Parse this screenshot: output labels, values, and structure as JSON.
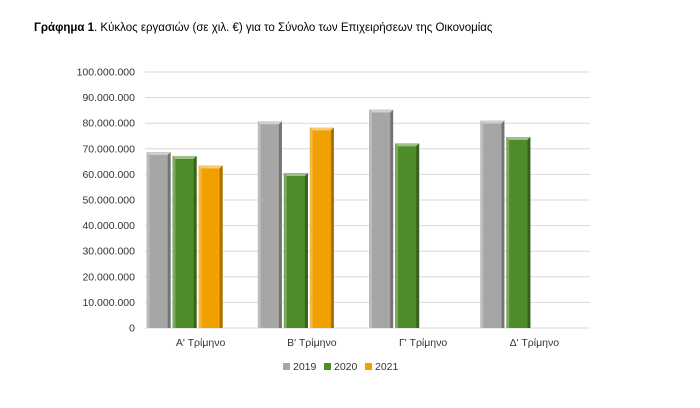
{
  "title": {
    "bold_part": "Γράφημα 1",
    "rest": ".  Κύκλος εργασιών (σε χιλ. €) για το Σύνολο των Επιχειρήσεων της Οικονομίας"
  },
  "chart_data": {
    "type": "bar",
    "title": "Γράφημα 1.  Κύκλος εργασιών (σε χιλ. €) για το Σύνολο των Επιχειρήσεων της Οικονομίας",
    "categories": [
      "Α' Τρίμηνο",
      "Β' Τρίμηνο",
      "Γ' Τρίμηνο",
      "Δ' Τρίμηνο"
    ],
    "series": [
      {
        "name": "2019",
        "color": "#a6a6a6",
        "values": [
          68700000,
          80700000,
          85300000,
          81000000
        ]
      },
      {
        "name": "2020",
        "color": "#4e8c2a",
        "values": [
          67200000,
          60500000,
          72100000,
          74600000
        ]
      },
      {
        "name": "2021",
        "color": "#f0a000",
        "values": [
          63500000,
          78300000,
          null,
          null
        ]
      }
    ],
    "ylim": [
      0,
      100000000
    ],
    "yticks": [
      "0",
      "10.000.000",
      "20.000.000",
      "30.000.000",
      "40.000.000",
      "50.000.000",
      "60.000.000",
      "70.000.000",
      "80.000.000",
      "90.000.000",
      "100.000.000"
    ],
    "grid": true,
    "legend": "bottom"
  }
}
